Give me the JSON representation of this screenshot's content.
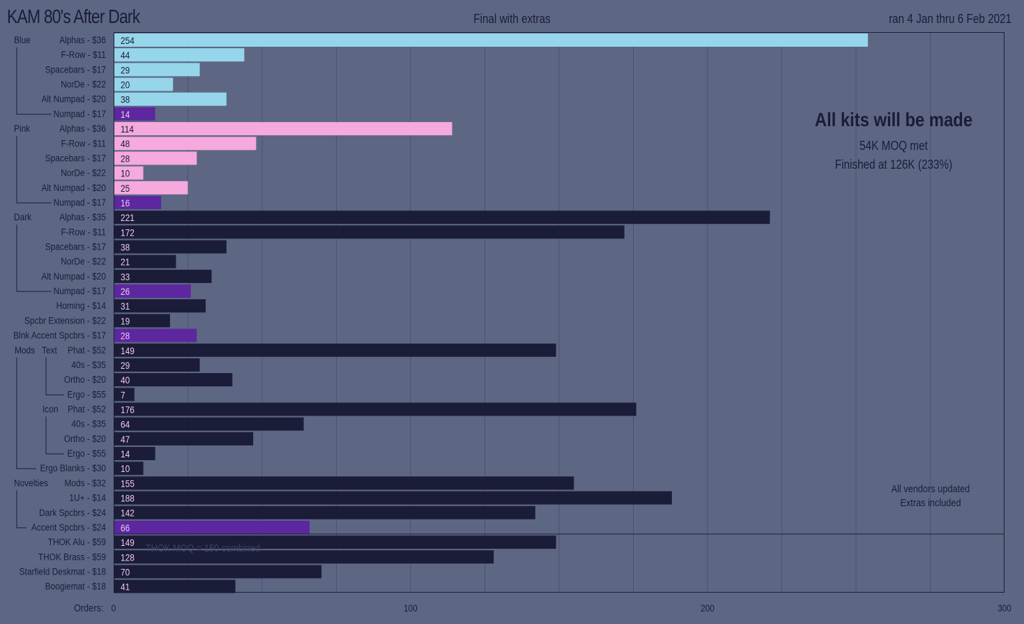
{
  "header": {
    "title": "KAM 80's After Dark",
    "subtitle": "Final with extras",
    "date_range": "ran  4 Jan  thru  6 Feb  2021"
  },
  "notes": {
    "headline": "All kits will be made",
    "moq": "54K MOQ met",
    "finished": "Finished at 126K (233%)",
    "vendors": "All vendors updated",
    "extras": "Extras included",
    "thok": "THOK MOQ = 150 combined"
  },
  "axis": {
    "label": "Orders:",
    "ticks": [
      "0",
      "100",
      "200",
      "300"
    ]
  },
  "colors": {
    "background": "#5d6784",
    "blue": "#96d6ea",
    "pink": "#f5a9dc",
    "dark": "#1b1c38",
    "purple": "#5d27a0",
    "grid": "#4a5270",
    "label_dark": "#1b1c38",
    "label_light": "#f0c8ee"
  },
  "groups": [
    {
      "label": "Blue"
    },
    {
      "label": "Pink"
    },
    {
      "label": "Dark"
    },
    {
      "label": "Mods"
    },
    {
      "label": "Text"
    },
    {
      "label": "Icon"
    },
    {
      "label": "Novelties"
    }
  ],
  "chart_data": {
    "type": "bar",
    "orientation": "horizontal",
    "title": "KAM 80's After Dark",
    "subtitle": "Final with extras",
    "xlabel": "Orders:",
    "xlim": [
      0,
      300
    ],
    "xticks": [
      0,
      100,
      200,
      300
    ],
    "grid": "vertical every 25",
    "categories": [
      "Alphas - $36",
      "F-Row - $11",
      "Spacebars - $17",
      "NorDe - $22",
      "Alt Numpad - $20",
      "Numpad - $17",
      "Alphas - $36",
      "F-Row - $11",
      "Spacebars - $17",
      "NorDe - $22",
      "Alt Numpad - $20",
      "Numpad - $17",
      "Alphas - $35",
      "F-Row - $11",
      "Spacebars - $17",
      "NorDe - $22",
      "Alt Numpad - $20",
      "Numpad - $17",
      "Homing - $14",
      "Spcbr Extension - $22",
      "Blnk Accent Spcbrs - $17",
      "Phat - $52",
      "40s - $35",
      "Ortho - $20",
      "Ergo - $55",
      "Phat - $52",
      "40s - $35",
      "Ortho - $20",
      "Ergo - $55",
      "Ergo Blanks - $30",
      "Mods - $32",
      "1U+ - $14",
      "Dark Spcbrs - $24",
      "Accent Spcbrs - $24",
      "THOK Alu - $59",
      "THOK Brass - $59",
      "Starfield Deskmat - $18",
      "Boogiemat - $18"
    ],
    "values": [
      254,
      44,
      29,
      20,
      38,
      14,
      114,
      48,
      28,
      10,
      25,
      16,
      221,
      172,
      38,
      21,
      33,
      26,
      31,
      19,
      28,
      149,
      29,
      40,
      7,
      176,
      64,
      47,
      14,
      10,
      155,
      188,
      142,
      66,
      149,
      128,
      70,
      41
    ],
    "colors": [
      "blue",
      "blue",
      "blue",
      "blue",
      "blue",
      "purple",
      "pink",
      "pink",
      "pink",
      "pink",
      "pink",
      "purple",
      "dark",
      "dark",
      "dark",
      "dark",
      "dark",
      "purple",
      "dark",
      "dark",
      "purple",
      "dark",
      "dark",
      "dark",
      "dark",
      "dark",
      "dark",
      "dark",
      "dark",
      "dark",
      "dark",
      "dark",
      "dark",
      "purple",
      "dark",
      "dark",
      "dark",
      "dark"
    ],
    "value_labels": [
      "254",
      "44",
      "29",
      "20",
      "38",
      "14",
      "114",
      "48",
      "28",
      "10",
      "25",
      "16",
      "221",
      "172",
      "38",
      "21",
      "33",
      "26",
      "31",
      "19",
      "28",
      "149",
      "29",
      "40",
      "7",
      "176",
      "64",
      "47",
      "14",
      "10",
      "155",
      "188",
      "142",
      "66",
      "149",
      "128",
      "70",
      "41"
    ]
  }
}
